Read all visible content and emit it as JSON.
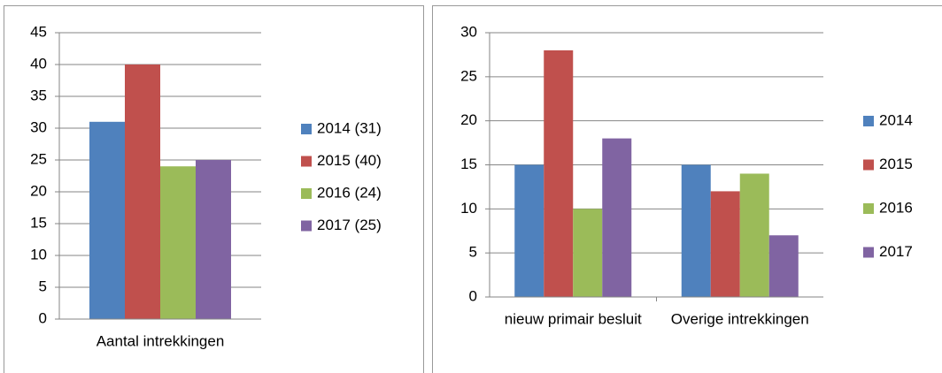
{
  "chart_data": [
    {
      "type": "bar",
      "categories": [
        "Aantal intrekkingen"
      ],
      "series": [
        {
          "name": "2014 (31)",
          "color": "#4f81bd",
          "values": [
            31
          ]
        },
        {
          "name": "2015 (40)",
          "color": "#c0504d",
          "values": [
            40
          ]
        },
        {
          "name": "2016 (24)",
          "color": "#9bbb59",
          "values": [
            24
          ]
        },
        {
          "name": "2017 (25)",
          "color": "#8064a2",
          "values": [
            25
          ]
        }
      ],
      "ylim": [
        0,
        45
      ],
      "yticks": [
        0,
        5,
        10,
        15,
        20,
        25,
        30,
        35,
        40,
        45
      ],
      "grid": true,
      "legend": "right"
    },
    {
      "type": "bar",
      "categories": [
        "nieuw primair besluit",
        "Overige intrekkingen"
      ],
      "series": [
        {
          "name": "2014",
          "color": "#4f81bd",
          "values": [
            15,
            15
          ]
        },
        {
          "name": "2015",
          "color": "#c0504d",
          "values": [
            28,
            12
          ]
        },
        {
          "name": "2016",
          "color": "#9bbb59",
          "values": [
            10,
            14
          ]
        },
        {
          "name": "2017",
          "color": "#8064a2",
          "values": [
            18,
            7
          ]
        }
      ],
      "ylim": [
        0,
        30
      ],
      "yticks": [
        0,
        5,
        10,
        15,
        20,
        25,
        30
      ],
      "grid": true,
      "legend": "right"
    }
  ]
}
